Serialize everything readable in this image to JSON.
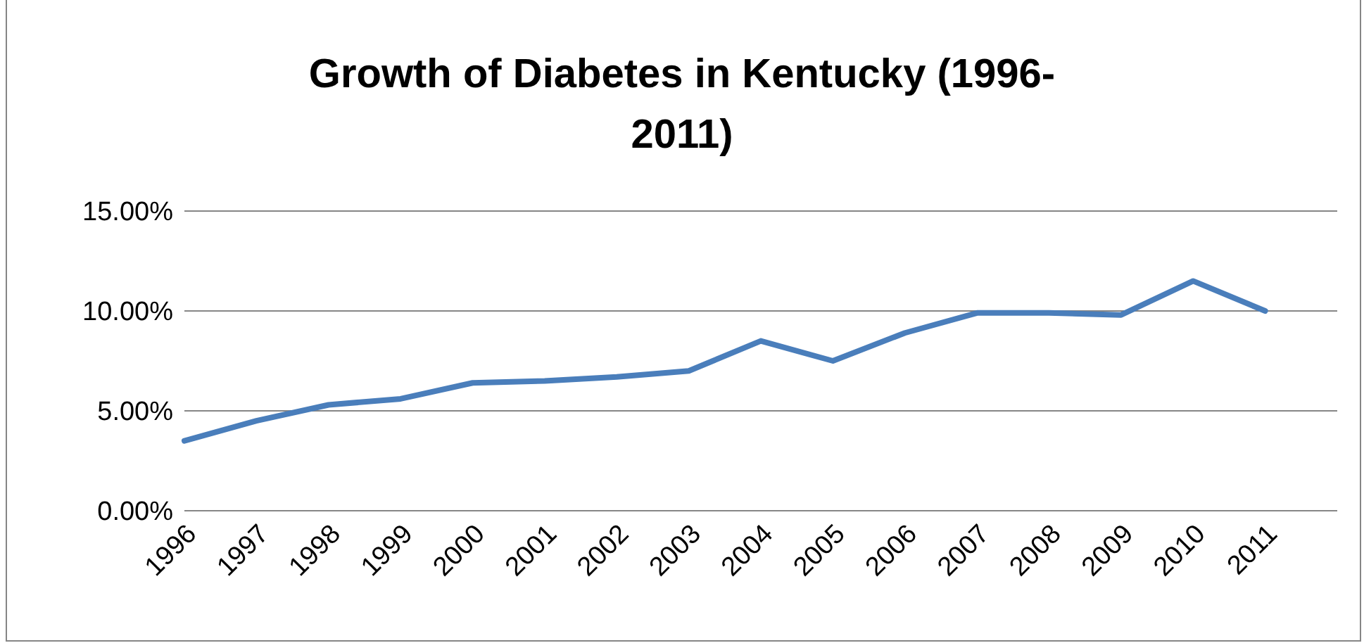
{
  "chart_data": {
    "type": "line",
    "title": "Growth of Diabetes in Kentucky (1996-2011)",
    "categories": [
      "1996",
      "1997",
      "1998",
      "1999",
      "2000",
      "2001",
      "2002",
      "2003",
      "2004",
      "2005",
      "2006",
      "2007",
      "2008",
      "2009",
      "2010",
      "2011",
      null
    ],
    "series": [
      {
        "color": "#4a7ebb",
        "values": [
          3.5,
          4.5,
          5.3,
          5.6,
          6.4,
          6.5,
          6.7,
          7.0,
          8.5,
          7.5,
          8.9,
          9.9,
          9.9,
          9.8,
          11.5,
          10.0,
          null
        ]
      }
    ],
    "ylim": [
      0,
      15
    ],
    "yticks": [
      {
        "value": 0,
        "label": "0.00%"
      },
      {
        "value": 5,
        "label": "5.00%"
      },
      {
        "value": 10,
        "label": "10.00%"
      },
      {
        "value": 15,
        "label": "15.00%"
      }
    ],
    "grid": "y",
    "legend": false,
    "marker": "none",
    "line_style": "solid"
  }
}
